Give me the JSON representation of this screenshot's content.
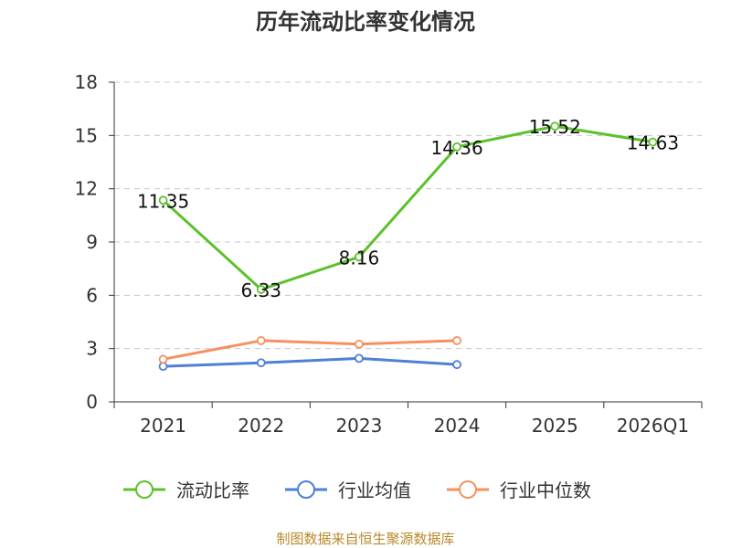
{
  "chart_data": {
    "type": "line",
    "title": "历年流动比率变化情况",
    "categories": [
      "2021",
      "2022",
      "2023",
      "2024",
      "2025",
      "2026Q1"
    ],
    "ylim": [
      0,
      18
    ],
    "yticks": [
      "0",
      "3",
      "6",
      "9",
      "12",
      "15",
      "18"
    ],
    "ytick_values": [
      0,
      3,
      6,
      9,
      12,
      15,
      18
    ],
    "grid": true,
    "legend_position": "bottom",
    "series": [
      {
        "name": "流动比率",
        "color": "#5cc12b",
        "values": [
          11.35,
          6.33,
          8.16,
          14.36,
          15.52,
          14.63
        ],
        "labels": [
          "11.35",
          "6.33",
          "8.16",
          "14.36",
          "15.52",
          "14.63"
        ]
      },
      {
        "name": "行业均值",
        "color": "#4f7fd6",
        "values": [
          2.0,
          2.2,
          2.45,
          2.1,
          null,
          null
        ]
      },
      {
        "name": "行业中位数",
        "color": "#f4925f",
        "values": [
          2.4,
          3.45,
          3.25,
          3.45,
          null,
          null
        ]
      }
    ]
  },
  "source_text": "制图数据来自恒生聚源数据库"
}
